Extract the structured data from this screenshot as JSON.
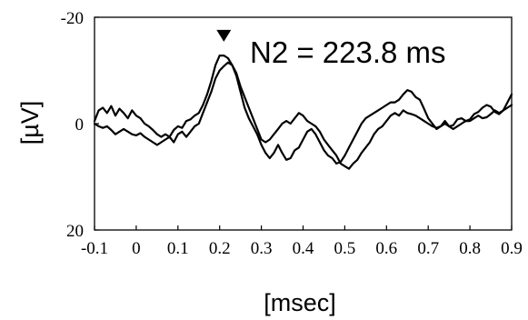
{
  "chart_data": {
    "type": "line",
    "title": "",
    "xlabel": "[msec]",
    "ylabel": "[µV]",
    "xlim": [
      -0.1,
      0.9
    ],
    "ylim": [
      -20,
      20
    ],
    "y_reversed": true,
    "grid": false,
    "xticks": [
      "-0.1",
      "0",
      "0.1",
      "0.2",
      "0.3",
      "0.4",
      "0.5",
      "0.6",
      "0.7",
      "0.8",
      "0.9"
    ],
    "yticks": [
      "-20",
      "0",
      "20"
    ],
    "line_color": "#000000",
    "annotation": {
      "text": "N2 = 223.8 ms",
      "marker": "down-triangle",
      "x": 0.21,
      "y": -16.6
    },
    "series": [
      {
        "x": [
          -0.1,
          -0.09,
          -0.08,
          -0.07,
          -0.06,
          -0.05,
          -0.04,
          -0.03,
          -0.02,
          -0.01,
          0.0,
          0.01,
          0.02,
          0.03,
          0.04,
          0.05,
          0.06,
          0.07,
          0.08,
          0.09,
          0.1,
          0.11,
          0.12,
          0.13,
          0.14,
          0.15,
          0.16,
          0.17,
          0.18,
          0.19,
          0.2,
          0.21,
          0.22,
          0.23,
          0.24,
          0.25,
          0.26,
          0.27,
          0.28,
          0.29,
          0.3,
          0.31,
          0.32,
          0.33,
          0.34,
          0.35,
          0.36,
          0.37,
          0.38,
          0.39,
          0.4,
          0.41,
          0.42,
          0.43,
          0.44,
          0.45,
          0.46,
          0.47,
          0.48,
          0.49,
          0.5,
          0.51,
          0.52,
          0.53,
          0.54,
          0.55,
          0.56,
          0.57,
          0.58,
          0.59,
          0.6,
          0.61,
          0.62,
          0.63,
          0.64,
          0.65,
          0.66,
          0.67,
          0.68,
          0.69,
          0.7,
          0.71,
          0.72,
          0.73,
          0.74,
          0.75,
          0.76,
          0.77,
          0.78,
          0.79,
          0.8,
          0.81,
          0.82,
          0.83,
          0.84,
          0.85,
          0.86,
          0.87,
          0.88,
          0.89,
          0.9
        ],
        "values": [
          -0.5,
          -2.5,
          -3.0,
          -2.0,
          -3.3,
          -1.5,
          -2.8,
          -2.0,
          -1.0,
          -2.5,
          -1.5,
          -1.0,
          0.0,
          0.5,
          1.2,
          2.0,
          2.5,
          2.0,
          2.5,
          1.2,
          0.5,
          0.8,
          -0.5,
          -0.8,
          -1.5,
          -2.0,
          -3.5,
          -5.5,
          -8.0,
          -11.0,
          -12.8,
          -12.8,
          -12.3,
          -11.0,
          -9.0,
          -6.0,
          -3.0,
          -1.0,
          0.5,
          2.0,
          4.0,
          5.5,
          6.5,
          5.5,
          4.0,
          5.5,
          6.8,
          6.5,
          5.0,
          4.5,
          3.0,
          1.5,
          1.0,
          2.0,
          3.5,
          5.0,
          6.0,
          6.5,
          7.5,
          7.2,
          6.0,
          4.5,
          3.0,
          1.5,
          0.0,
          -1.0,
          -1.5,
          -2.0,
          -2.5,
          -3.0,
          -3.5,
          -4.0,
          -4.0,
          -4.5,
          -5.5,
          -6.3,
          -6.0,
          -5.0,
          -4.5,
          -2.8,
          -1.0,
          0.0,
          1.0,
          0.5,
          -0.5,
          0.5,
          0.3,
          -0.8,
          -1.0,
          -0.5,
          -0.8,
          -1.8,
          -2.2,
          -3.0,
          -3.5,
          -3.2,
          -2.2,
          -1.8,
          -2.5,
          -4.0,
          -5.5
        ]
      },
      {
        "x": [
          -0.1,
          -0.09,
          -0.08,
          -0.07,
          -0.06,
          -0.05,
          -0.04,
          -0.03,
          -0.02,
          -0.01,
          0.0,
          0.01,
          0.02,
          0.03,
          0.04,
          0.05,
          0.06,
          0.07,
          0.08,
          0.09,
          0.1,
          0.11,
          0.12,
          0.13,
          0.14,
          0.15,
          0.16,
          0.17,
          0.18,
          0.19,
          0.2,
          0.21,
          0.22,
          0.23,
          0.24,
          0.25,
          0.26,
          0.27,
          0.28,
          0.29,
          0.3,
          0.31,
          0.32,
          0.33,
          0.34,
          0.35,
          0.36,
          0.37,
          0.38,
          0.39,
          0.4,
          0.41,
          0.42,
          0.43,
          0.44,
          0.45,
          0.46,
          0.47,
          0.48,
          0.49,
          0.5,
          0.51,
          0.52,
          0.53,
          0.54,
          0.55,
          0.56,
          0.57,
          0.58,
          0.59,
          0.6,
          0.61,
          0.62,
          0.63,
          0.64,
          0.65,
          0.66,
          0.67,
          0.68,
          0.69,
          0.7,
          0.71,
          0.72,
          0.73,
          0.74,
          0.75,
          0.76,
          0.77,
          0.78,
          0.79,
          0.8,
          0.81,
          0.82,
          0.83,
          0.84,
          0.85,
          0.86,
          0.87,
          0.88,
          0.89,
          0.9
        ],
        "values": [
          0.0,
          0.5,
          0.8,
          0.5,
          1.2,
          2.0,
          1.5,
          1.0,
          1.5,
          2.0,
          2.2,
          1.8,
          2.5,
          3.0,
          3.5,
          4.0,
          3.5,
          3.0,
          2.5,
          3.5,
          2.0,
          1.5,
          2.5,
          1.5,
          0.5,
          0.0,
          -2.0,
          -4.0,
          -6.0,
          -8.5,
          -10.0,
          -10.8,
          -11.5,
          -11.0,
          -9.5,
          -7.0,
          -5.0,
          -3.0,
          -1.0,
          1.0,
          3.0,
          3.5,
          3.0,
          2.0,
          1.0,
          0.0,
          -0.5,
          0.0,
          -1.0,
          -2.0,
          -1.5,
          -0.5,
          0.0,
          0.5,
          1.5,
          3.0,
          4.0,
          5.0,
          6.0,
          7.5,
          8.0,
          8.5,
          7.5,
          6.8,
          5.5,
          4.5,
          3.5,
          2.0,
          1.0,
          0.5,
          -0.5,
          -1.5,
          -2.0,
          -1.5,
          -2.5,
          -2.0,
          -1.8,
          -1.5,
          -1.0,
          -0.5,
          0.0,
          0.5,
          0.8,
          0.5,
          0.0,
          0.5,
          1.0,
          0.5,
          0.0,
          -0.5,
          -0.5,
          -1.0,
          -1.5,
          -1.0,
          -1.2,
          -1.8,
          -2.5,
          -2.0,
          -2.5,
          -3.0,
          -3.5
        ]
      }
    ]
  }
}
